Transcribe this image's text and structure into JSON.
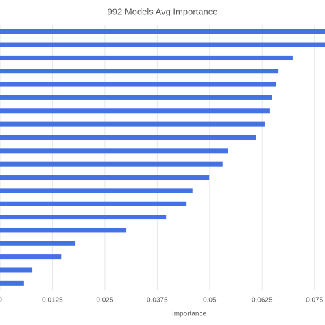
{
  "chart_data": {
    "type": "barh",
    "title": "992 Models Avg Importance",
    "xlabel": "Importance",
    "categories": [
      null,
      null,
      null,
      null,
      null,
      null,
      null,
      null,
      null,
      null,
      null,
      null,
      null,
      null,
      null,
      null,
      null,
      null,
      null,
      null
    ],
    "values": [
      0.078,
      0.078,
      0.0698,
      0.0664,
      0.0659,
      0.0649,
      0.0644,
      0.0631,
      0.0611,
      0.0544,
      0.0531,
      0.0499,
      0.0459,
      0.0445,
      0.0396,
      0.0301,
      0.018,
      0.0146,
      0.0077,
      0.0057
    ],
    "color": "#4472e4",
    "xlim": [
      0,
      0.0775
    ],
    "xticks": [
      0,
      0.0125,
      0.025,
      0.0375,
      0.05,
      0.0625,
      0.075
    ],
    "grid": true
  }
}
